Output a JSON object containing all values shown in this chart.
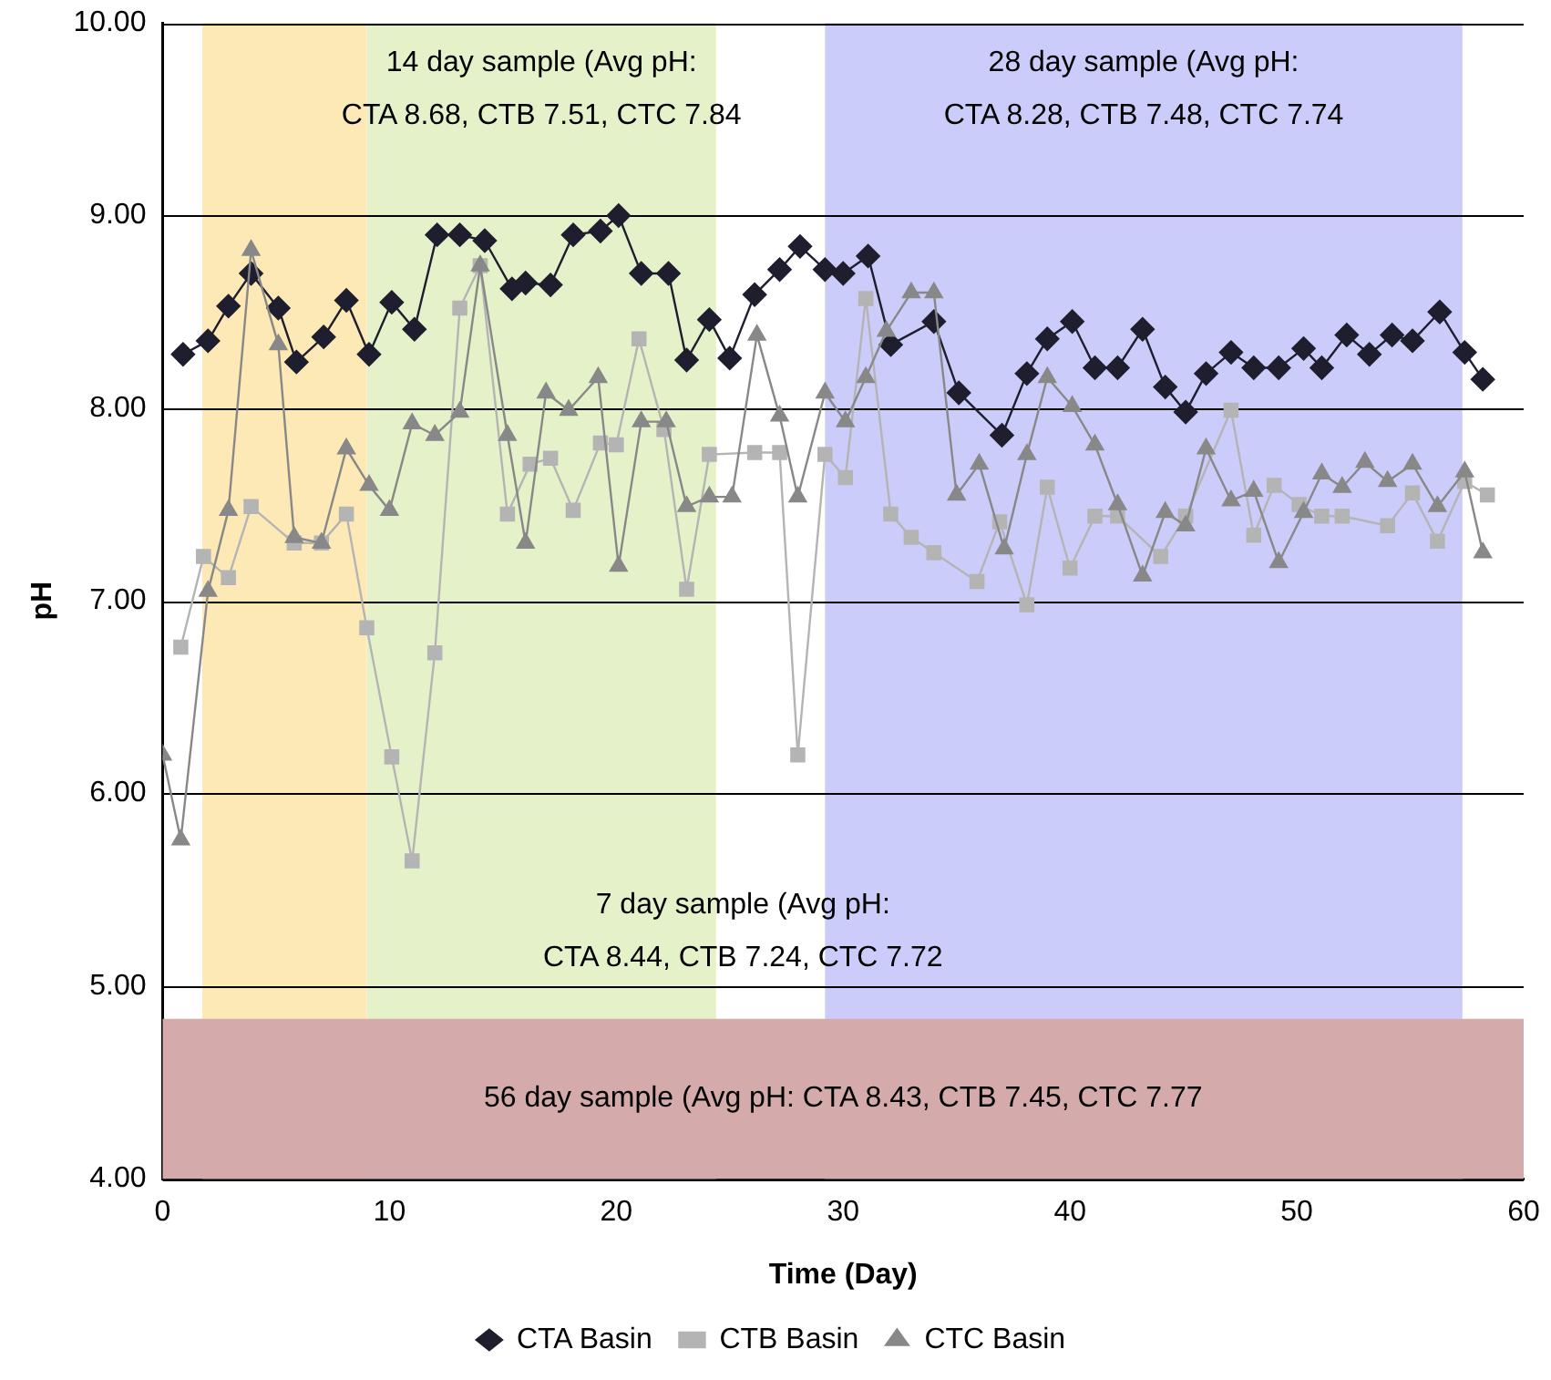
{
  "chart_data": {
    "type": "line",
    "xlabel": "Time (Day)",
    "ylabel": "pH",
    "xlim": [
      0,
      60
    ],
    "xticks": [
      0,
      10,
      20,
      30,
      40,
      50,
      60
    ],
    "ylim": [
      4,
      10
    ],
    "yticks": [
      {
        "value": 4,
        "label": "4.00"
      },
      {
        "value": 5,
        "label": "5.00"
      },
      {
        "value": 6,
        "label": "6.00"
      },
      {
        "value": 7,
        "label": "7.00"
      },
      {
        "value": 8,
        "label": "8.00"
      },
      {
        "value": 9,
        "label": "9.00"
      },
      {
        "value": 10,
        "label": "10.00"
      }
    ],
    "grid": "y",
    "legend": "bottom",
    "line_style": "solid",
    "bands": [
      {
        "axis": "x",
        "from": 1.75,
        "to": 9,
        "label": null,
        "color": "#fde9b5"
      },
      {
        "axis": "x",
        "from": 9,
        "to": 24.4,
        "label": "14 day sample (Avg pH:\nCTA 8.68, CTB 7.51, CTC 7.84",
        "color": "#e5f2c9"
      },
      {
        "axis": "x",
        "from": 29.2,
        "to": 57.3,
        "label": "28 day sample (Avg pH:\nCTA 8.28, CTB 7.48, CTC 7.74",
        "color": "#ccccfa"
      },
      {
        "axis": "y",
        "from": 4,
        "to": 4.83,
        "label": "56 day sample (Avg pH: CTA 8.43, CTB 7.45, CTC 7.77",
        "color": "#d5aaaa"
      }
    ],
    "annotations": [
      "7 day sample (Avg pH:\nCTA 8.44, CTB 7.24, CTC 7.72"
    ],
    "series": [
      {
        "name": "CTA Basin",
        "color": "#1e1e2e",
        "marker": "diamond",
        "x": [
          0.9,
          2.0,
          2.9,
          3.9,
          5.1,
          5.9,
          7.1,
          8.1,
          9.1,
          10.1,
          11.1,
          12.1,
          13.1,
          14.2,
          15.4,
          16.0,
          17.1,
          18.1,
          19.3,
          20.1,
          21.1,
          22.3,
          23.1,
          24.1,
          25.0,
          26.1,
          27.2,
          28.1,
          29.2,
          30.0,
          31.1,
          32.1,
          34.0,
          35.1,
          37.0,
          38.1,
          39.0,
          40.1,
          41.1,
          42.1,
          43.2,
          44.2,
          45.1,
          46.0,
          47.1,
          48.1,
          49.2,
          50.3,
          51.1,
          52.2,
          53.2,
          54.2,
          55.1,
          56.3,
          57.4,
          58.2
        ],
        "values": [
          8.28,
          8.35,
          8.53,
          8.7,
          8.52,
          8.24,
          8.37,
          8.56,
          8.28,
          8.55,
          8.41,
          8.9,
          8.9,
          8.87,
          8.62,
          8.65,
          8.64,
          8.9,
          8.92,
          9.0,
          8.7,
          8.7,
          8.25,
          8.46,
          8.26,
          8.59,
          8.72,
          8.84,
          8.72,
          8.7,
          8.79,
          8.33,
          8.45,
          8.08,
          7.86,
          8.18,
          8.36,
          8.45,
          8.21,
          8.21,
          8.41,
          8.11,
          7.98,
          8.18,
          8.29,
          8.21,
          8.21,
          8.31,
          8.21,
          8.38,
          8.28,
          8.38,
          8.35,
          8.5,
          8.29,
          8.15
        ]
      },
      {
        "name": "CTB Basin",
        "color": "#b4b4b4",
        "marker": "square",
        "x": [
          0.8,
          1.8,
          2.9,
          3.9,
          5.8,
          7.0,
          8.1,
          9.0,
          10.1,
          11.0,
          12.0,
          13.1,
          14.0,
          15.2,
          16.2,
          17.1,
          18.1,
          19.3,
          20.0,
          21.0,
          22.1,
          23.1,
          24.1,
          26.1,
          27.2,
          28.0,
          29.2,
          30.1,
          31.0,
          32.1,
          33.0,
          34.0,
          35.9,
          36.9,
          38.1,
          39.0,
          40.0,
          41.1,
          42.1,
          44.0,
          45.1,
          47.1,
          48.1,
          49.0,
          50.1,
          51.1,
          52.0,
          54.0,
          55.1,
          56.2,
          57.4,
          58.4
        ],
        "values": [
          6.76,
          7.23,
          7.12,
          7.49,
          7.3,
          7.3,
          7.45,
          6.86,
          6.19,
          5.65,
          6.73,
          8.52,
          8.74,
          7.45,
          7.71,
          7.74,
          7.47,
          7.82,
          7.81,
          8.36,
          7.89,
          7.06,
          7.76,
          7.77,
          7.77,
          6.2,
          7.76,
          7.64,
          8.57,
          7.45,
          7.33,
          7.25,
          7.1,
          7.41,
          6.98,
          7.59,
          7.17,
          7.44,
          7.44,
          7.23,
          7.44,
          7.99,
          7.34,
          7.6,
          7.5,
          7.44,
          7.44,
          7.39,
          7.56,
          7.31,
          7.62,
          7.55
        ]
      },
      {
        "name": "CTC Basin",
        "color": "#888888",
        "marker": "triangle",
        "x": [
          0.0,
          0.8,
          2.0,
          2.9,
          3.9,
          5.1,
          5.8,
          7.0,
          8.1,
          9.1,
          10.0,
          11.0,
          12.0,
          13.1,
          14.0,
          15.2,
          16.0,
          16.9,
          17.9,
          19.2,
          20.1,
          21.1,
          22.2,
          23.1,
          24.1,
          25.1,
          26.2,
          27.2,
          28.0,
          29.2,
          30.1,
          31.0,
          31.9,
          33.0,
          34.0,
          35.0,
          36.0,
          37.1,
          38.1,
          39.0,
          40.1,
          41.1,
          42.1,
          43.2,
          44.2,
          45.1,
          46.0,
          47.1,
          48.1,
          49.2,
          50.3,
          51.1,
          52.0,
          53.0,
          54.0,
          55.1,
          56.2,
          57.4,
          58.2
        ],
        "values": [
          6.2,
          5.76,
          7.05,
          7.47,
          8.82,
          8.33,
          7.33,
          7.3,
          7.79,
          7.6,
          7.47,
          7.92,
          7.86,
          7.98,
          8.74,
          7.86,
          7.3,
          8.08,
          7.99,
          8.16,
          7.18,
          7.93,
          7.93,
          7.49,
          7.54,
          7.54,
          8.38,
          7.96,
          7.54,
          8.08,
          7.93,
          8.16,
          8.4,
          8.6,
          8.6,
          7.55,
          7.71,
          7.27,
          7.76,
          8.16,
          8.01,
          7.81,
          7.5,
          7.13,
          7.46,
          7.39,
          7.79,
          7.52,
          7.57,
          7.2,
          7.46,
          7.66,
          7.59,
          7.72,
          7.62,
          7.71,
          7.49,
          7.67,
          7.25
        ]
      }
    ]
  }
}
